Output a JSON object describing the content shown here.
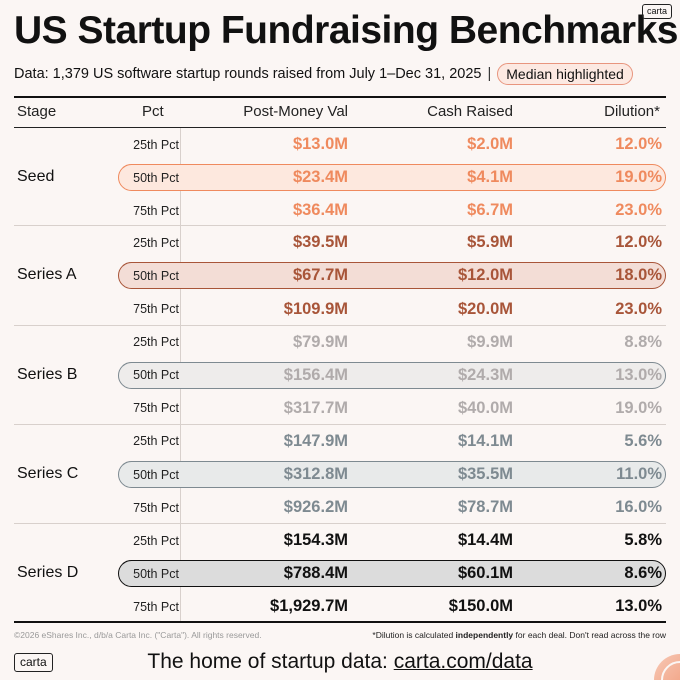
{
  "header": {
    "title": "US Startup Fundraising Benchmarks",
    "brand_tag": "carta",
    "subtitle": "Data: 1,379 US software startup rounds raised from July 1–Dec 31, 2025",
    "separator": "|",
    "median_badge": "Median highlighted"
  },
  "colors": {
    "seed": "#ef8a5e",
    "series_a": "#a85539",
    "series_b": "#b0abab",
    "series_c": "#7e8a91",
    "series_d": "#111111",
    "highlight_seed_bg": "#fde8de",
    "highlight_a_bg": "#f3ddd6",
    "highlight_b_bg": "#eeeceb",
    "highlight_c_bg": "#e8eaea",
    "highlight_d_bg": "#dcdcdc",
    "background": "#fbf6f4"
  },
  "chart_data": {
    "type": "table",
    "title": "US Startup Fundraising Benchmarks",
    "columns": [
      "Stage",
      "Pct",
      "Post-Money Val",
      "Cash Raised",
      "Dilution*"
    ],
    "groups": [
      {
        "stage": "Seed",
        "rows": [
          {
            "pct": "25th Pct",
            "post": "$13.0M",
            "cash": "$2.0M",
            "dilution": "12.0%"
          },
          {
            "pct": "50th Pct",
            "post": "$23.4M",
            "cash": "$4.1M",
            "dilution": "19.0%"
          },
          {
            "pct": "75th Pct",
            "post": "$36.4M",
            "cash": "$6.7M",
            "dilution": "23.0%"
          }
        ]
      },
      {
        "stage": "Series A",
        "rows": [
          {
            "pct": "25th Pct",
            "post": "$39.5M",
            "cash": "$5.9M",
            "dilution": "12.0%"
          },
          {
            "pct": "50th Pct",
            "post": "$67.7M",
            "cash": "$12.0M",
            "dilution": "18.0%"
          },
          {
            "pct": "75th Pct",
            "post": "$109.9M",
            "cash": "$20.0M",
            "dilution": "23.0%"
          }
        ]
      },
      {
        "stage": "Series B",
        "rows": [
          {
            "pct": "25th Pct",
            "post": "$79.9M",
            "cash": "$9.9M",
            "dilution": "8.8%"
          },
          {
            "pct": "50th Pct",
            "post": "$156.4M",
            "cash": "$24.3M",
            "dilution": "13.0%"
          },
          {
            "pct": "75th Pct",
            "post": "$317.7M",
            "cash": "$40.0M",
            "dilution": "19.0%"
          }
        ]
      },
      {
        "stage": "Series C",
        "rows": [
          {
            "pct": "25th Pct",
            "post": "$147.9M",
            "cash": "$14.1M",
            "dilution": "5.6%"
          },
          {
            "pct": "50th Pct",
            "post": "$312.8M",
            "cash": "$35.5M",
            "dilution": "11.0%"
          },
          {
            "pct": "75th Pct",
            "post": "$926.2M",
            "cash": "$78.7M",
            "dilution": "16.0%"
          }
        ]
      },
      {
        "stage": "Series D",
        "rows": [
          {
            "pct": "25th Pct",
            "post": "$154.3M",
            "cash": "$14.4M",
            "dilution": "5.8%"
          },
          {
            "pct": "50th Pct",
            "post": "$788.4M",
            "cash": "$60.1M",
            "dilution": "8.6%"
          },
          {
            "pct": "75th Pct",
            "post": "$1,929.7M",
            "cash": "$150.0M",
            "dilution": "13.0%"
          }
        ]
      }
    ],
    "highlighted_row": "50th Pct"
  },
  "footer": {
    "copyright": "©2026 eShares Inc., d/b/a Carta Inc. (\"Carta\"). All rights reserved.",
    "note_prefix": "*Dilution is calculated ",
    "note_bold": "independently",
    "note_suffix": " for each deal. Don't read across the row",
    "logo": "carta",
    "tagline": "The home of startup data: ",
    "link": "carta.com/data"
  }
}
